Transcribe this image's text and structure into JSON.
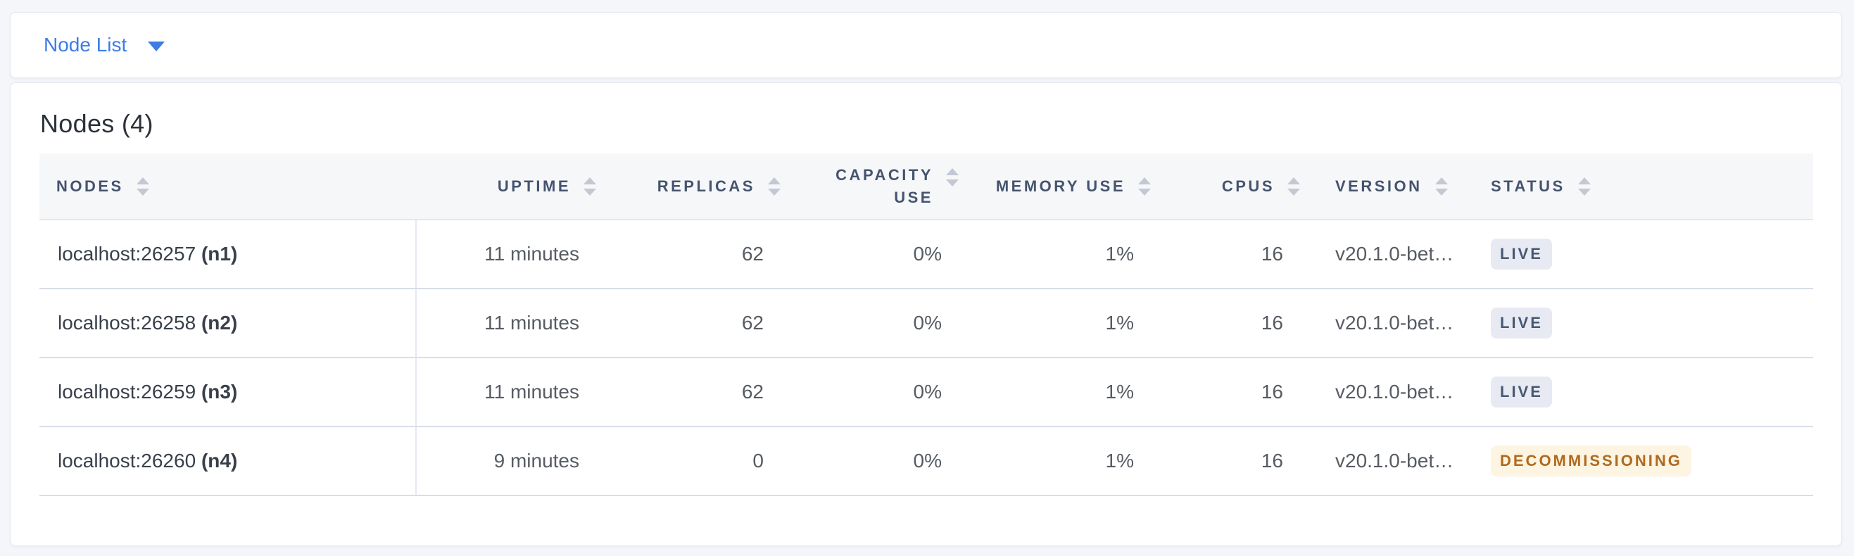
{
  "toolbar": {
    "view_selector_label": "Node List"
  },
  "panel": {
    "title": "Nodes (4)",
    "table": {
      "columns": [
        {
          "key": "nodes",
          "label": "NODES",
          "align": "left"
        },
        {
          "key": "uptime",
          "label": "UPTIME",
          "align": "right"
        },
        {
          "key": "replicas",
          "label": "REPLICAS",
          "align": "right"
        },
        {
          "key": "capacity_use",
          "label": "CAPACITY USE",
          "label_lines": [
            "CAPACITY",
            "USE"
          ],
          "align": "right"
        },
        {
          "key": "memory_use",
          "label": "MEMORY USE",
          "align": "right"
        },
        {
          "key": "cpus",
          "label": "CPUS",
          "align": "right"
        },
        {
          "key": "version",
          "label": "VERSION",
          "align": "left"
        },
        {
          "key": "status",
          "label": "STATUS",
          "align": "left"
        }
      ],
      "rows": [
        {
          "node": "localhost:26257",
          "node_id": "(n1)",
          "uptime": "11 minutes",
          "replicas": "62",
          "capacity_use": "0%",
          "memory_use": "1%",
          "cpus": "16",
          "version": "v20.1.0-bet…",
          "status": "LIVE",
          "status_kind": "live"
        },
        {
          "node": "localhost:26258",
          "node_id": "(n2)",
          "uptime": "11 minutes",
          "replicas": "62",
          "capacity_use": "0%",
          "memory_use": "1%",
          "cpus": "16",
          "version": "v20.1.0-bet…",
          "status": "LIVE",
          "status_kind": "live"
        },
        {
          "node": "localhost:26259",
          "node_id": "(n3)",
          "uptime": "11 minutes",
          "replicas": "62",
          "capacity_use": "0%",
          "memory_use": "1%",
          "cpus": "16",
          "version": "v20.1.0-bet…",
          "status": "LIVE",
          "status_kind": "live"
        },
        {
          "node": "localhost:26260",
          "node_id": "(n4)",
          "uptime": "9 minutes",
          "replicas": "0",
          "capacity_use": "0%",
          "memory_use": "1%",
          "cpus": "16",
          "version": "v20.1.0-bet…",
          "status": "DECOMMISSIONING",
          "status_kind": "decommissioning"
        }
      ]
    }
  },
  "icons": {
    "caret_down": "caret-down-icon",
    "sort": "sort-icon"
  },
  "colors": {
    "accent_blue": "#3d7ce5",
    "page_background": "#f4f6fa",
    "header_text": "#45536e",
    "badge_live_bg": "#e7eaf2",
    "badge_live_text": "#475872",
    "badge_decommissioning_bg": "#fdf4e2",
    "badge_decommissioning_text": "#b06a1e"
  }
}
